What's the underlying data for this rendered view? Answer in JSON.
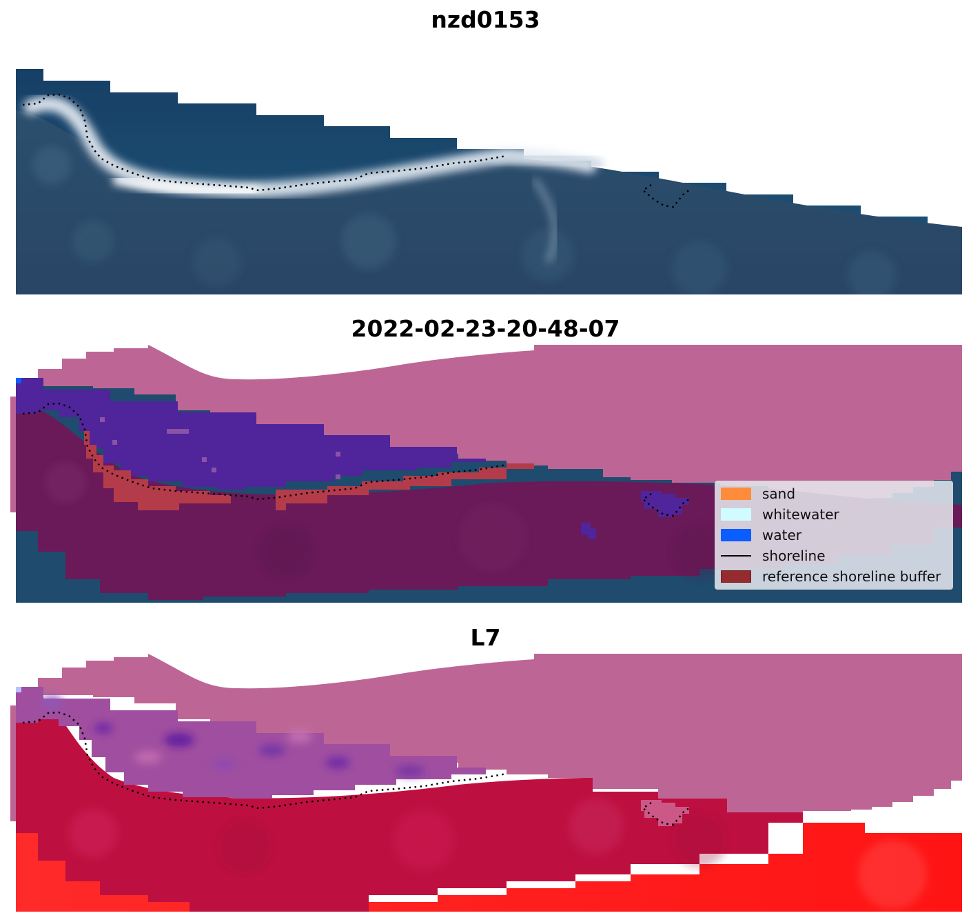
{
  "panels": [
    {
      "title": "nzd0153"
    },
    {
      "title": "2022-02-23-20-48-07"
    },
    {
      "title": "L7"
    }
  ],
  "legend": {
    "items": [
      {
        "label": "sand",
        "color": "#ff8c3a",
        "kind": "patch"
      },
      {
        "label": "whitewater",
        "color": "#d0fbff",
        "kind": "patch"
      },
      {
        "label": "water",
        "color": "#0a5dff",
        "kind": "patch"
      },
      {
        "label": "shoreline",
        "color": "#000000",
        "kind": "line"
      },
      {
        "label": "reference shoreline buffer",
        "color": "#962b2f",
        "kind": "patch"
      }
    ]
  },
  "colors": {
    "ocean_deep": "#1c4670",
    "land_dark": "#2a4b6a",
    "surf": "#f2f6fa",
    "buffer_pink": "#bd6696",
    "classified_water": "#50249a",
    "classified_sand": "#b43c4a",
    "classified_land": "#6a1a58",
    "index_land": "#be1040",
    "index_water": "#7e3fb2",
    "index_bright": "#ff1a1a",
    "shoreline": "#000000"
  }
}
